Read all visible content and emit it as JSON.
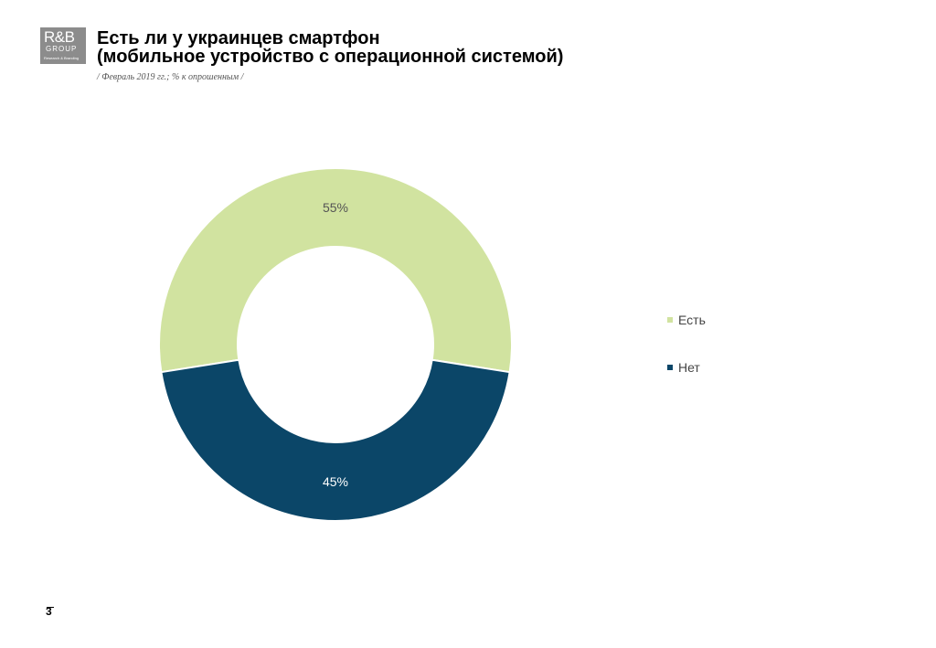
{
  "logo": {
    "line1": "R&B",
    "line2": "GROUP",
    "line3": "Research & Branding"
  },
  "header": {
    "title_line1": "Есть ли у украинцев смартфон",
    "title_line2": "(мобильное устройство с операционной системой)",
    "subtitle": "/ Февраль 2019 гг.; % к опрошенным  /"
  },
  "chart_data": {
    "type": "pie",
    "donut": true,
    "categories": [
      "Есть",
      "Нет"
    ],
    "values": [
      55,
      45
    ],
    "value_labels": [
      "55%",
      "45%"
    ],
    "colors": [
      "#d1e3a0",
      "#0b4668"
    ],
    "label_colors": [
      "#555555",
      "#ffffff"
    ],
    "legend_position": "right"
  },
  "page_number": "3"
}
